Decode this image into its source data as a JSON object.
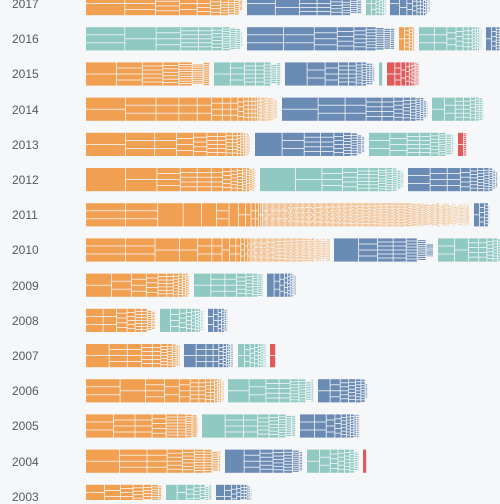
{
  "colors": {
    "orange": "#f0a050",
    "teal": "#8fc9c2",
    "blue": "#6a8bb3",
    "red": "#e05a5a",
    "background": "#f6f7f9",
    "label": "#555a60"
  },
  "chart_data": {
    "type": "bar",
    "title": "",
    "xlabel": "",
    "ylabel": "",
    "categories": [
      "2017",
      "2016",
      "2015",
      "2014",
      "2013",
      "2012",
      "2011",
      "2010",
      "2009",
      "2008",
      "2007",
      "2006",
      "2005",
      "2004",
      "2003"
    ],
    "series_colors": [
      "orange",
      "teal",
      "blue",
      "red"
    ],
    "rows": [
      {
        "year": "2017",
        "segments": [
          [
            "orange",
            157
          ],
          [
            "blue",
            115
          ],
          [
            "teal",
            20
          ],
          [
            "blue",
            40
          ]
        ]
      },
      {
        "year": "2016",
        "segments": [
          [
            "teal",
            157
          ],
          [
            "blue",
            148
          ],
          [
            "orange",
            16
          ],
          [
            "teal",
            63
          ],
          [
            "blue",
            15
          ]
        ]
      },
      {
        "year": "2015",
        "segments": [
          [
            "orange",
            124
          ],
          [
            "teal",
            67
          ],
          [
            "blue",
            90
          ],
          [
            "teal",
            4
          ],
          [
            "red",
            33
          ]
        ]
      },
      {
        "year": "2014",
        "segments": [
          [
            "orange",
            192
          ],
          [
            "blue",
            146
          ],
          [
            "teal",
            52
          ]
        ]
      },
      {
        "year": "2013",
        "segments": [
          [
            "orange",
            165
          ],
          [
            "blue",
            110
          ],
          [
            "teal",
            85
          ],
          [
            "red",
            9
          ]
        ]
      },
      {
        "year": "2012",
        "segments": [
          [
            "orange",
            170
          ],
          [
            "teal",
            144
          ],
          [
            "blue",
            90
          ]
        ]
      },
      {
        "year": "2011",
        "segments": [
          [
            "orange",
            384
          ],
          [
            "blue",
            16
          ]
        ]
      },
      {
        "year": "2010",
        "segments": [
          [
            "orange",
            244
          ],
          [
            "blue",
            100
          ],
          [
            "teal",
            68
          ]
        ]
      },
      {
        "year": "2009",
        "segments": [
          [
            "orange",
            104
          ],
          [
            "teal",
            69
          ],
          [
            "blue",
            30
          ]
        ]
      },
      {
        "year": "2008",
        "segments": [
          [
            "orange",
            70
          ],
          [
            "teal",
            44
          ],
          [
            "blue",
            20
          ]
        ]
      },
      {
        "year": "2007",
        "segments": [
          [
            "orange",
            94
          ],
          [
            "blue",
            50
          ],
          [
            "teal",
            28
          ],
          [
            "red",
            6
          ]
        ]
      },
      {
        "year": "2006",
        "segments": [
          [
            "orange",
            138
          ],
          [
            "teal",
            86
          ],
          [
            "blue",
            50
          ]
        ]
      },
      {
        "year": "2005",
        "segments": [
          [
            "orange",
            112
          ],
          [
            "teal",
            94
          ],
          [
            "blue",
            60
          ]
        ]
      },
      {
        "year": "2004",
        "segments": [
          [
            "orange",
            135
          ],
          [
            "blue",
            78
          ],
          [
            "teal",
            52
          ],
          [
            "red",
            4
          ]
        ]
      },
      {
        "year": "2003",
        "segments": [
          [
            "orange",
            76
          ],
          [
            "teal",
            46
          ],
          [
            "blue",
            36
          ]
        ]
      }
    ]
  }
}
